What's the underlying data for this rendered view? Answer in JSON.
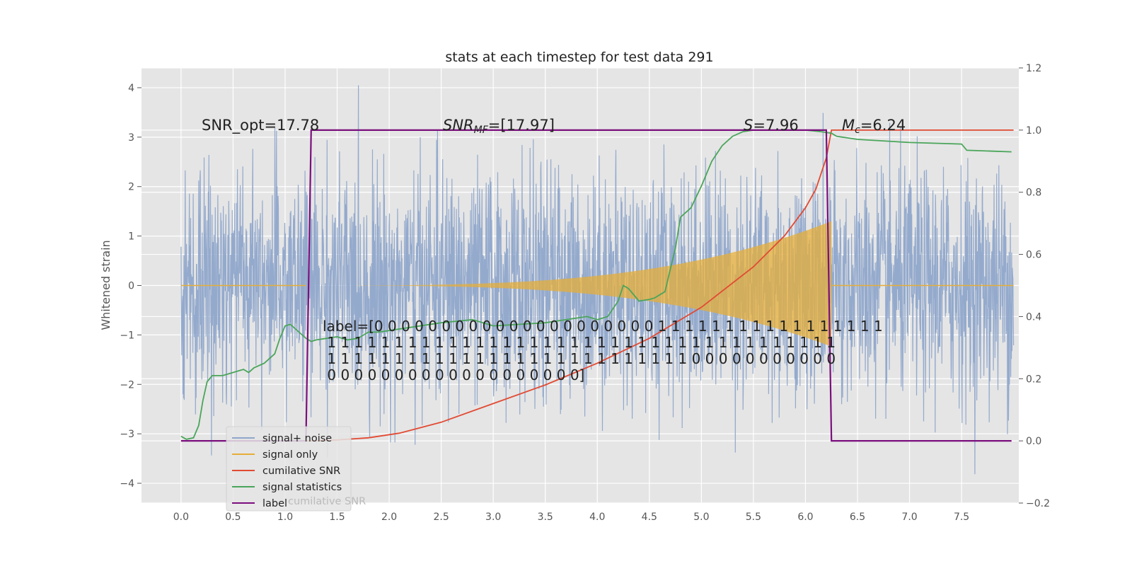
{
  "chart_data": {
    "type": "line",
    "title": "stats at each timestep for test data 291",
    "ylabel_left": "Whitened strain",
    "ylabel_right": "",
    "xlim": [
      -0.38,
      8.05
    ],
    "ylim_left": [
      -4.4,
      4.4
    ],
    "ylim_right": [
      -0.2,
      1.2
    ],
    "grid": true,
    "x_ticks": [
      "0.0",
      "0.5",
      "1.0",
      "1.5",
      "2.0",
      "2.5",
      "3.0",
      "3.5",
      "4.0",
      "4.5",
      "5.0",
      "5.5",
      "6.0",
      "6.5",
      "7.0",
      "7.5"
    ],
    "x_tick_values": [
      0.0,
      0.5,
      1.0,
      1.5,
      2.0,
      2.5,
      3.0,
      3.5,
      4.0,
      4.5,
      5.0,
      5.5,
      6.0,
      6.5,
      7.0,
      7.5
    ],
    "y_ticks_left": [
      "4",
      "3",
      "2",
      "1",
      "0",
      "−1",
      "−2",
      "−3",
      "−4"
    ],
    "y_tick_values_left": [
      4,
      3,
      2,
      1,
      0,
      -1,
      -2,
      -3,
      -4
    ],
    "y_ticks_right": [
      "1.2",
      "1.0",
      "0.8",
      "0.6",
      "0.4",
      "0.2",
      "0.0",
      "−0.2"
    ],
    "y_tick_values_right": [
      1.2,
      1.0,
      0.8,
      0.6,
      0.4,
      0.2,
      0.0,
      -0.2
    ],
    "annotations": {
      "snr_opt": "SNR_opt=17.78",
      "snr_mf": "SNR_MF=[17.97]",
      "s_value": "S=7.96",
      "mc_value": "M_c=6.24",
      "label_lines": [
        "label=[0 0 0 0 0 0 0 0 0 0 0 0 0 0 0 0 0 0 0 0 0 1 1 1 1 1 1 1 1 1 1 1 1 1 1 1 1 1",
        " 1 1 1 1 1 1 1 1 1 1 1 1 1 1 1 1 1 1 1 1 1 1 1 1 1 1 1 1 1 1 1 1 1 1 1 1 1 1",
        " 1 1 1 1 1 1 1 1 1 1 1 1 1 1 1 1 1 1 1 1 1 1 1 1 1 1 1 0 0 0 0 0 0 0 0 0 0 0",
        " 0 0 0 0 0 0 0 0 0 0 0 0 0 0 0 0 0 0 0]"
      ]
    },
    "legend": {
      "placement": "lower-left",
      "entries": [
        "signal+ noise",
        "signal only",
        "cumilative SNR",
        "signal statistics",
        "label"
      ],
      "ghost_text": "cumilative SNR"
    },
    "colors": {
      "signal_noise": "#8fa6cb",
      "signal_only": "#e5ae38",
      "cumulative_snr": "#e24a33",
      "signal_statistics": "#4aa55a",
      "label": "#7b0f7d",
      "axes_bg": "#e5e5e5",
      "grid": "#ffffff"
    },
    "series": [
      {
        "name": "signal+ noise",
        "axis": "left",
        "x_range": [
          0.0,
          8.0
        ],
        "envelope_min": -3.9,
        "envelope_max": 4.05
      },
      {
        "name": "signal only",
        "axis": "left",
        "x_range": [
          0.0,
          8.0
        ],
        "chirp_end": 6.25,
        "peak_amplitude": 1.3
      },
      {
        "name": "cumilative SNR",
        "axis": "right",
        "x": [
          0.0,
          1.0,
          1.25,
          1.5,
          1.8,
          2.1,
          2.5,
          3.0,
          3.5,
          4.0,
          4.5,
          5.0,
          5.5,
          5.8,
          6.0,
          6.1,
          6.15,
          6.2,
          6.25,
          8.0
        ],
        "y": [
          0.0,
          0.0,
          0.0,
          0.003,
          0.01,
          0.025,
          0.06,
          0.12,
          0.18,
          0.25,
          0.33,
          0.43,
          0.56,
          0.66,
          0.75,
          0.81,
          0.86,
          0.91,
          1.0,
          1.0
        ]
      },
      {
        "name": "signal statistics",
        "axis": "right",
        "x": [
          0.0,
          0.05,
          0.12,
          0.17,
          0.21,
          0.25,
          0.3,
          0.4,
          0.5,
          0.55,
          0.6,
          0.65,
          0.7,
          0.8,
          0.9,
          0.95,
          1.0,
          1.05,
          1.1,
          1.2,
          1.25,
          1.3,
          1.4,
          1.5,
          1.6,
          1.7,
          1.8,
          1.9,
          2.0,
          2.5,
          2.8,
          3.0,
          3.5,
          3.9,
          4.0,
          4.1,
          4.2,
          4.25,
          4.3,
          4.35,
          4.4,
          4.5,
          4.55,
          4.6,
          4.65,
          4.7,
          4.75,
          4.8,
          4.9,
          5.0,
          5.1,
          5.2,
          5.3,
          5.4,
          5.5,
          5.6,
          6.0,
          6.15,
          6.25,
          6.3,
          6.5,
          7.0,
          7.5,
          7.55,
          7.98
        ],
        "y": [
          0.015,
          0.005,
          0.01,
          0.05,
          0.13,
          0.19,
          0.21,
          0.21,
          0.22,
          0.225,
          0.23,
          0.22,
          0.235,
          0.25,
          0.28,
          0.33,
          0.37,
          0.375,
          0.36,
          0.33,
          0.32,
          0.325,
          0.33,
          0.335,
          0.325,
          0.33,
          0.35,
          0.35,
          0.355,
          0.38,
          0.39,
          0.37,
          0.38,
          0.4,
          0.39,
          0.4,
          0.45,
          0.5,
          0.49,
          0.47,
          0.45,
          0.455,
          0.46,
          0.47,
          0.48,
          0.55,
          0.62,
          0.72,
          0.75,
          0.82,
          0.9,
          0.95,
          0.98,
          0.995,
          1.0,
          1.0,
          1.0,
          0.995,
          0.99,
          0.98,
          0.97,
          0.96,
          0.955,
          0.935,
          0.93
        ]
      },
      {
        "name": "label",
        "axis": "right",
        "x": [
          0.0,
          1.2,
          1.25,
          6.2,
          6.25,
          7.98
        ],
        "y": [
          0.0,
          0.0,
          1.0,
          1.0,
          0.0,
          0.0
        ]
      }
    ]
  }
}
